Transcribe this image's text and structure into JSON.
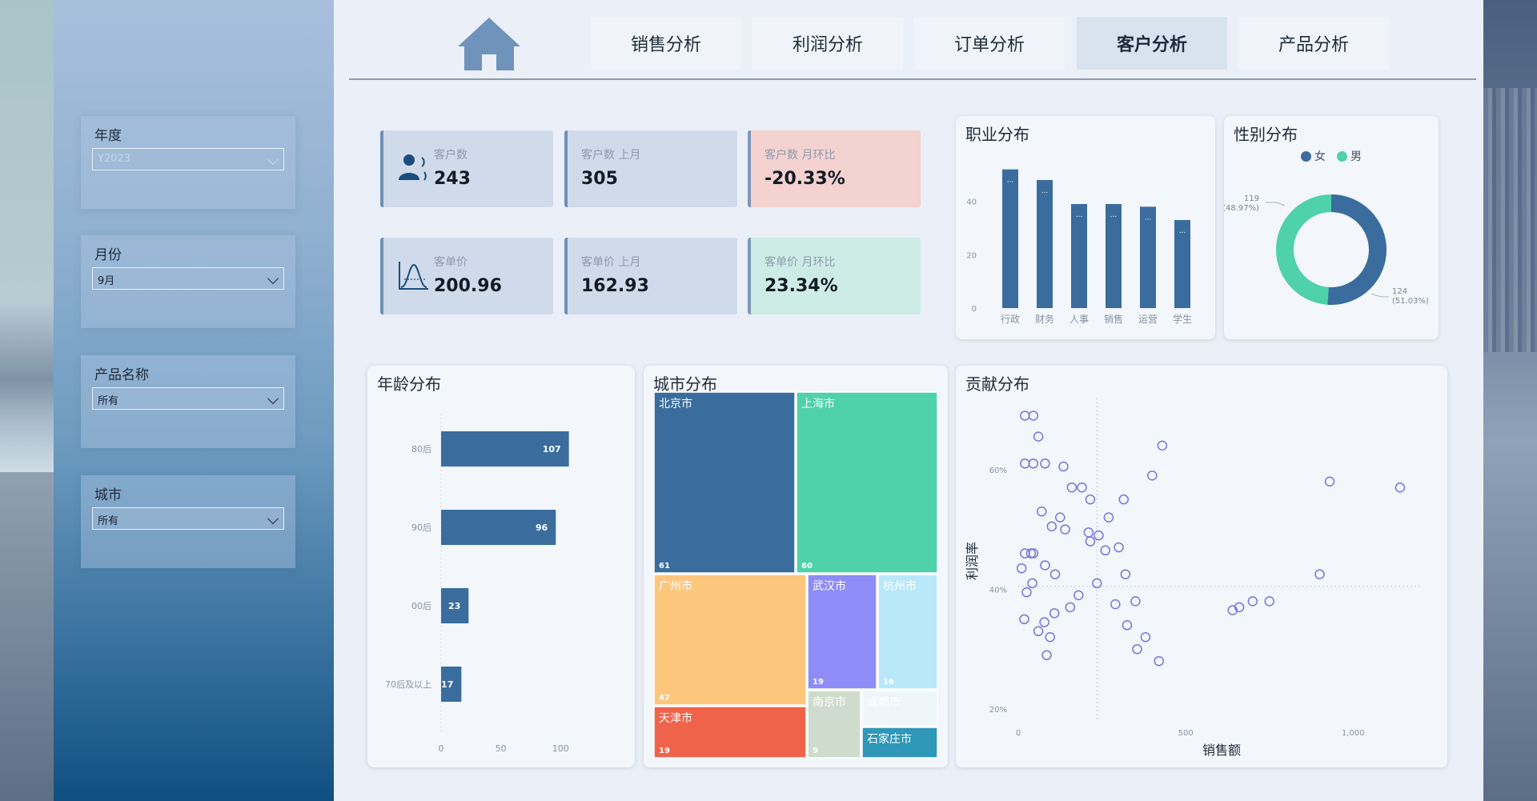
{
  "nav": {
    "tabs": [
      {
        "label": "销售分析",
        "active": false
      },
      {
        "label": "利润分析",
        "active": false
      },
      {
        "label": "订单分析",
        "active": false
      },
      {
        "label": "客户分析",
        "active": true
      },
      {
        "label": "产品分析",
        "active": false
      }
    ],
    "home_icon": "home-icon"
  },
  "filters": {
    "year": {
      "label": "年度",
      "value": "Y2023"
    },
    "month": {
      "label": "月份",
      "value": "9月"
    },
    "product": {
      "label": "产品名称",
      "value": "所有"
    },
    "city": {
      "label": "城市",
      "value": "所有"
    }
  },
  "kpis": {
    "customers": {
      "label": "客户数",
      "value": "243",
      "icon": "customer-icon"
    },
    "customers_last": {
      "label": "客户数 上月",
      "value": "305"
    },
    "customers_mom": {
      "label": "客户数 月环比",
      "value": "-20.33%"
    },
    "unit_price": {
      "label": "客单价",
      "value": "200.96",
      "icon": "distribution-curve-icon"
    },
    "unit_price_last": {
      "label": "客单价 上月",
      "value": "162.93"
    },
    "unit_price_mom": {
      "label": "客单价 月环比",
      "value": "23.34%"
    }
  },
  "colors": {
    "primary": "#3a6d9e",
    "teal": "#4fd1aa",
    "orange": "#fdc67d",
    "purple": "#8e8cf7",
    "lightblue": "#b8e8fa",
    "red": "#f0634b",
    "sage": "#cfdccd",
    "cyan": "#2f97b7",
    "scatter": "#7b74d8"
  },
  "occupation": {
    "title": "职业分布",
    "categories": [
      "行政",
      "财务",
      "人事",
      "销售",
      "运营",
      "学生"
    ],
    "values": [
      52,
      48,
      39,
      39,
      38,
      33
    ],
    "yticks": [
      "0",
      "20",
      "40"
    ],
    "ylim": [
      0,
      60
    ]
  },
  "gender": {
    "title": "性别分布",
    "legend": [
      "女",
      "男"
    ],
    "female": {
      "value": 119,
      "label_count": "119",
      "label_pct": "(48.97%)"
    },
    "male": {
      "value": 124,
      "label_count": "124",
      "label_pct": "(51.03%)"
    }
  },
  "age": {
    "title": "年龄分布",
    "categories": [
      "80后",
      "90后",
      "00后",
      "70后及以上"
    ],
    "values": [
      107,
      96,
      23,
      17
    ],
    "xticks": [
      "0",
      "50",
      "100"
    ],
    "xlim": [
      0,
      130
    ]
  },
  "city": {
    "title": "城市分布",
    "cells": [
      {
        "name": "北京市",
        "value": 61
      },
      {
        "name": "上海市",
        "value": 60
      },
      {
        "name": "广州市",
        "value": 47
      },
      {
        "name": "武汉市",
        "value": 19
      },
      {
        "name": "杭州市",
        "value": 16
      },
      {
        "name": "天津市",
        "value": 19
      },
      {
        "name": "南京市",
        "value": 9
      },
      {
        "name": "成都市",
        "value": null
      },
      {
        "name": "石家庄市",
        "value": null
      }
    ]
  },
  "contribution": {
    "title": "贡献分布",
    "xlabel": "销售额",
    "ylabel": "利润率",
    "xticks": [
      "0",
      "500",
      "1,000"
    ],
    "yticks": [
      "20%",
      "40%",
      "60%"
    ]
  },
  "chart_data": [
    {
      "type": "bar",
      "title": "职业分布",
      "categories": [
        "行政",
        "财务",
        "人事",
        "销售",
        "运营",
        "学生"
      ],
      "values": [
        52,
        48,
        39,
        39,
        38,
        33
      ],
      "ylim": [
        0,
        60
      ]
    },
    {
      "type": "pie",
      "title": "性别分布",
      "categories": [
        "女",
        "男"
      ],
      "values": [
        119,
        124
      ]
    },
    {
      "type": "bar",
      "title": "年龄分布",
      "categories": [
        "80后",
        "90后",
        "00后",
        "70后及以上"
      ],
      "values": [
        107,
        96,
        23,
        17
      ],
      "xlim": [
        0,
        130
      ]
    },
    {
      "type": "heatmap",
      "title": "城市分布",
      "categories": [
        "北京市",
        "上海市",
        "广州市",
        "武汉市",
        "杭州市",
        "天津市",
        "南京市",
        "成都市",
        "石家庄市"
      ],
      "values": [
        61,
        60,
        47,
        19,
        16,
        19,
        9,
        null,
        null
      ]
    },
    {
      "type": "scatter",
      "title": "贡献分布",
      "xlabel": "销售额",
      "ylabel": "利润率",
      "xlim": [
        0,
        1200
      ],
      "ylim": [
        18,
        72
      ],
      "x": [
        20,
        45,
        60,
        20,
        45,
        80,
        135,
        20,
        38,
        45,
        80,
        110,
        160,
        190,
        215,
        240,
        270,
        315,
        400,
        430,
        640,
        660,
        700,
        750,
        900,
        930,
        1140,
        70,
        100,
        125,
        140,
        210,
        215,
        260,
        300,
        320,
        350,
        10,
        25,
        42,
        18,
        60,
        78,
        85,
        95,
        108,
        155,
        180,
        235,
        290,
        325,
        355,
        380,
        420
      ],
      "y": [
        69,
        69,
        65.5,
        61,
        61,
        61,
        60.5,
        46,
        46,
        46,
        44,
        42.5,
        57,
        57,
        55,
        49,
        52,
        55,
        59,
        64,
        36.5,
        37,
        38,
        38,
        42.5,
        58,
        57,
        53,
        50.5,
        52,
        50,
        49.5,
        48,
        46.5,
        47,
        42.5,
        38,
        43.5,
        39.5,
        41,
        35,
        33,
        34.5,
        29,
        32,
        36,
        37,
        39,
        41,
        37.5,
        34,
        30,
        32,
        28
      ]
    }
  ]
}
